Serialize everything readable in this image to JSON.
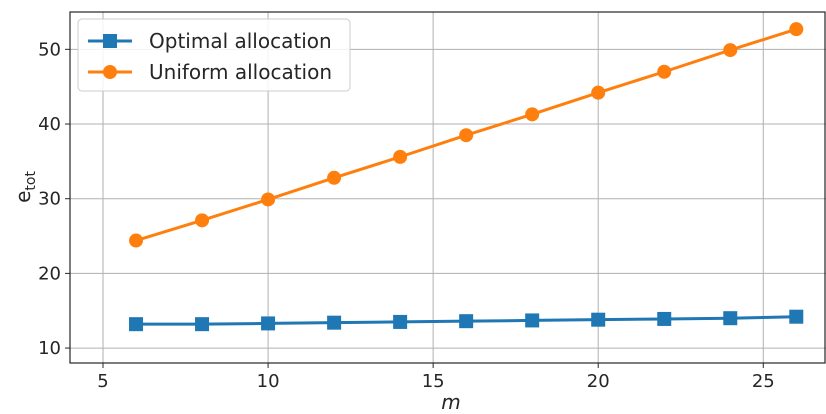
{
  "chart_data": {
    "type": "line",
    "title": "",
    "xlabel": "m",
    "ylabel_main": "e",
    "ylabel_sub": "tot",
    "x": [
      6,
      8,
      10,
      12,
      14,
      16,
      18,
      20,
      22,
      24,
      26
    ],
    "series": [
      {
        "name": "Optimal allocation",
        "color": "#1f77b4",
        "marker": "square",
        "values": [
          13.2,
          13.2,
          13.3,
          13.4,
          13.5,
          13.6,
          13.7,
          13.8,
          13.9,
          14.0,
          14.2
        ]
      },
      {
        "name": "Uniform allocation",
        "color": "#ff7f0e",
        "marker": "circle",
        "values": [
          24.4,
          27.1,
          29.9,
          32.8,
          35.6,
          38.5,
          41.3,
          44.2,
          47.0,
          49.9,
          52.7
        ]
      }
    ],
    "xlim": [
      4.0,
      26.9
    ],
    "ylim": [
      8.0,
      55.0
    ],
    "xticks": [
      5,
      10,
      15,
      20,
      25
    ],
    "yticks": [
      10,
      20,
      30,
      40,
      50
    ],
    "grid": true,
    "legend_position": "top-left"
  }
}
